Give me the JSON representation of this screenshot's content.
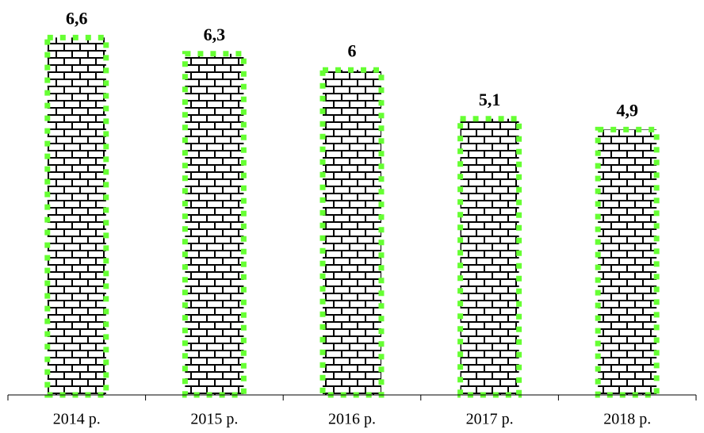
{
  "chart_data": {
    "type": "bar",
    "categories": [
      "2014 р.",
      "2015 р.",
      "2016 р.",
      "2017 р.",
      "2018 р."
    ],
    "values": [
      6.6,
      6.3,
      6,
      5.1,
      4.9
    ],
    "value_labels": [
      "6,6",
      "6,3",
      "6",
      "5,1",
      "4,9"
    ],
    "color": "#66ff33",
    "ylim": [
      0,
      7
    ]
  }
}
